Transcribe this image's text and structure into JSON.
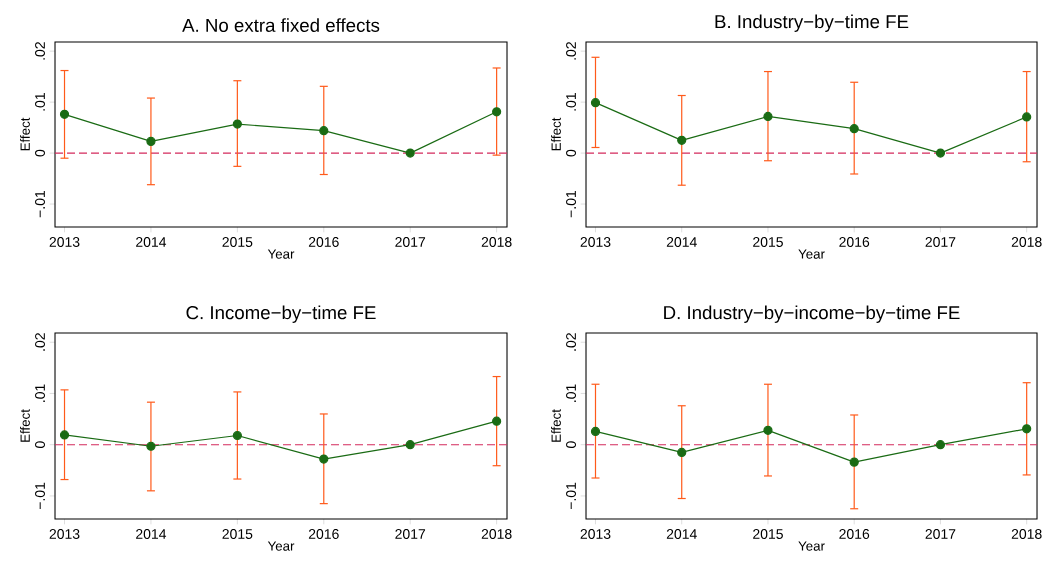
{
  "chart_data": [
    {
      "type": "line",
      "title": "A. No extra fixed effects",
      "xlabel": "Year",
      "ylabel": "Effect",
      "color": "#1a6b14",
      "marker": "circle",
      "x": [
        2013,
        2014,
        2015,
        2016,
        2017,
        2018
      ],
      "values": [
        0.0076,
        0.0023,
        0.0057,
        0.0044,
        0,
        0.0081
      ],
      "errors": [
        [
          -0.001,
          0.0162
        ],
        [
          -0.0062,
          0.0108
        ],
        [
          -0.0026,
          0.0142
        ],
        [
          -0.0042,
          0.0131
        ],
        null,
        [
          -0.0004,
          0.0167
        ]
      ],
      "xlim": [
        2012.89,
        2018.12
      ],
      "ylim": [
        -0.0145,
        0.0218
      ],
      "xticks": [
        2013,
        2014,
        2015,
        2016,
        2017,
        2018
      ],
      "yticks": [
        {
          "value": -0.01,
          "label": "−.01"
        },
        {
          "value": 0,
          "label": "0"
        },
        {
          "value": 0.01,
          "label": ".01"
        },
        {
          "value": 0.02,
          "label": ".02"
        }
      ],
      "ref_lines": [
        {
          "axis": "y",
          "value": 0,
          "color": "#d42a5c",
          "line_style": "dashed"
        }
      ]
    },
    {
      "type": "line",
      "title": "B. Industry−by−time FE",
      "xlabel": "Year",
      "ylabel": "Effect",
      "color": "#1a6b14",
      "marker": "circle",
      "x": [
        2013,
        2014,
        2015,
        2016,
        2017,
        2018
      ],
      "values": [
        0.0099,
        0.0025,
        0.0072,
        0.0048,
        0,
        0.0071
      ],
      "errors": [
        [
          0.0011,
          0.0188
        ],
        [
          -0.0063,
          0.0113
        ],
        [
          -0.0015,
          0.016
        ],
        [
          -0.0041,
          0.0139
        ],
        null,
        [
          -0.0017,
          0.016
        ]
      ],
      "xlim": [
        2012.89,
        2018.12
      ],
      "ylim": [
        -0.0145,
        0.0218
      ],
      "xticks": [
        2013,
        2014,
        2015,
        2016,
        2017,
        2018
      ],
      "yticks": [
        {
          "value": -0.01,
          "label": "−.01"
        },
        {
          "value": 0,
          "label": "0"
        },
        {
          "value": 0.01,
          "label": ".01"
        },
        {
          "value": 0.02,
          "label": ".02"
        }
      ],
      "ref_lines": [
        {
          "axis": "y",
          "value": 0,
          "color": "#d42a5c",
          "line_style": "dashed"
        }
      ]
    },
    {
      "type": "line",
      "title": "C. Income−by−time FE",
      "xlabel": "Year",
      "ylabel": "Effect",
      "color": "#1a6b14",
      "marker": "circle",
      "x": [
        2013,
        2014,
        2015,
        2016,
        2017,
        2018
      ],
      "values": [
        0.0019,
        -0.0003,
        0.0018,
        -0.0028,
        0,
        0.0046
      ],
      "errors": [
        [
          -0.0068,
          0.0107
        ],
        [
          -0.009,
          0.0083
        ],
        [
          -0.0067,
          0.0103
        ],
        [
          -0.0115,
          0.006
        ],
        null,
        [
          -0.0041,
          0.0133
        ]
      ],
      "xlim": [
        2012.89,
        2018.12
      ],
      "ylim": [
        -0.0145,
        0.0218
      ],
      "xticks": [
        2013,
        2014,
        2015,
        2016,
        2017,
        2018
      ],
      "yticks": [
        {
          "value": -0.01,
          "label": "−.01"
        },
        {
          "value": 0,
          "label": "0"
        },
        {
          "value": 0.01,
          "label": ".01"
        },
        {
          "value": 0.02,
          "label": ".02"
        }
      ],
      "ref_lines": [
        {
          "axis": "y",
          "value": 0,
          "color": "#d42a5c",
          "line_style": "dashed"
        }
      ]
    },
    {
      "type": "line",
      "title": "D. Industry−by−income−by−time FE",
      "xlabel": "Year",
      "ylabel": "Effect",
      "color": "#1a6b14",
      "marker": "circle",
      "x": [
        2013,
        2014,
        2015,
        2016,
        2017,
        2018
      ],
      "values": [
        0.0026,
        -0.0015,
        0.0028,
        -0.0034,
        0,
        0.0031
      ],
      "errors": [
        [
          -0.0065,
          0.0118
        ],
        [
          -0.0105,
          0.0076
        ],
        [
          -0.0061,
          0.0118
        ],
        [
          -0.0125,
          0.0058
        ],
        null,
        [
          -0.0059,
          0.0121
        ]
      ],
      "xlim": [
        2012.89,
        2018.12
      ],
      "ylim": [
        -0.0145,
        0.0218
      ],
      "xticks": [
        2013,
        2014,
        2015,
        2016,
        2017,
        2018
      ],
      "yticks": [
        {
          "value": -0.01,
          "label": "−.01"
        },
        {
          "value": 0,
          "label": "0"
        },
        {
          "value": 0.01,
          "label": ".01"
        },
        {
          "value": 0.02,
          "label": ".02"
        }
      ],
      "ref_lines": [
        {
          "axis": "y",
          "value": 0,
          "color": "#d42a5c",
          "line_style": "dashed"
        }
      ]
    }
  ]
}
